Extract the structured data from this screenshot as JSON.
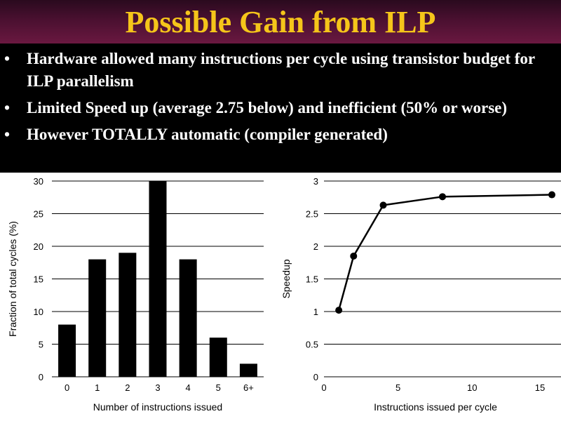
{
  "slide": {
    "title": "Possible Gain from ILP",
    "bullets": [
      "Hardware allowed many instructions per cycle using transistor budget for ILP parallelism",
      "Limited Speed up (average 2.75 below) and inefficient (50% or worse)",
      "However TOTALLY automatic (compiler generated)"
    ],
    "bullet_symbol": "•"
  },
  "chart_data": [
    {
      "type": "bar",
      "categories": [
        "0",
        "1",
        "2",
        "3",
        "4",
        "5",
        "6+"
      ],
      "values": [
        8,
        18,
        19,
        30,
        18,
        6,
        2
      ],
      "title": "",
      "xlabel": "Number of instructions issued",
      "ylabel": "Fraction of total cycles (%)",
      "ylim": [
        0,
        30
      ],
      "yticks": [
        "0",
        "5",
        "10",
        "15",
        "20",
        "25",
        "30"
      ],
      "grid": true,
      "bar_color": "#000000"
    },
    {
      "type": "line",
      "x": [
        1,
        2,
        4,
        8,
        16
      ],
      "y": [
        1.02,
        1.85,
        2.63,
        2.76,
        2.79
      ],
      "title": "",
      "xlabel": "Instructions issued per cycle",
      "ylabel": "Speedup",
      "xlim": [
        0,
        16
      ],
      "ylim": [
        0,
        3
      ],
      "xticks": [
        "0",
        "5",
        "10",
        "15"
      ],
      "yticks": [
        "0",
        "0.5",
        "1",
        "1.5",
        "2",
        "2.5",
        "3"
      ],
      "grid": true,
      "line_color": "#000000"
    }
  ]
}
